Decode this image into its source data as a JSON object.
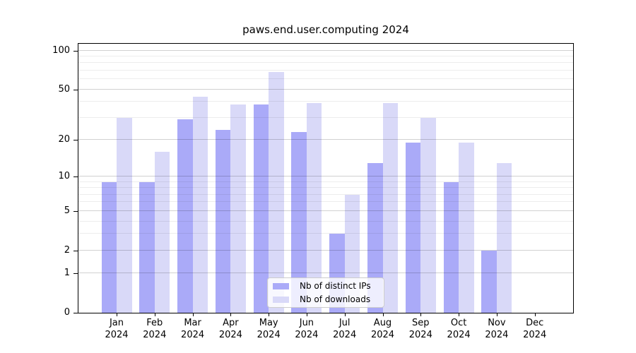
{
  "title": "paws.end.user.computing 2024",
  "legend": {
    "items": [
      {
        "label": "Nb of distinct IPs",
        "color": "#aaaaf8"
      },
      {
        "label": "Nb of downloads",
        "color": "#d9d9f8"
      }
    ]
  },
  "colors": {
    "bar_dark": "#aaaaf8",
    "bar_light": "#d9d9f8",
    "axis": "#000000",
    "legend_border": "#cccccc"
  },
  "y_axis": {
    "tick_labels": [
      "100",
      "50",
      "20",
      "10",
      "5",
      "2",
      "1",
      "0"
    ]
  },
  "x_axis": {
    "tick_labels": [
      "Jan 2024",
      "Feb 2024",
      "Mar 2024",
      "Apr 2024",
      "May 2024",
      "Jun 2024",
      "Jul 2024",
      "Aug 2024",
      "Sep 2024",
      "Oct 2024",
      "Nov 2024",
      "Dec 2024"
    ]
  },
  "chart_data": {
    "type": "bar",
    "title": "paws.end.user.computing 2024",
    "categories": [
      "Jan 2024",
      "Feb 2024",
      "Mar 2024",
      "Apr 2024",
      "May 2024",
      "Jun 2024",
      "Jul 2024",
      "Aug 2024",
      "Sep 2024",
      "Oct 2024",
      "Nov 2024",
      "Dec 2024"
    ],
    "series": [
      {
        "name": "Nb of distinct IPs",
        "color": "#aaaaf8",
        "values": [
          9,
          9,
          29,
          24,
          38,
          23,
          3,
          13,
          19,
          9,
          2,
          0
        ]
      },
      {
        "name": "Nb of downloads",
        "color": "#d9d9f8",
        "values": [
          30,
          16,
          44,
          38,
          68,
          39,
          7,
          39,
          30,
          19,
          13,
          0
        ]
      }
    ],
    "yscale": "log1p",
    "ylim": [
      0,
      114
    ],
    "y_major_ticks": [
      0,
      1,
      2,
      5,
      10,
      20,
      50,
      100
    ],
    "y_minor_gridlines": [
      3,
      4,
      6,
      7,
      8,
      9,
      30,
      40,
      60,
      70,
      80,
      90
    ],
    "xlabel": "",
    "ylabel": "",
    "grid": "horizontal",
    "legend_position": "lower-center-inside"
  }
}
